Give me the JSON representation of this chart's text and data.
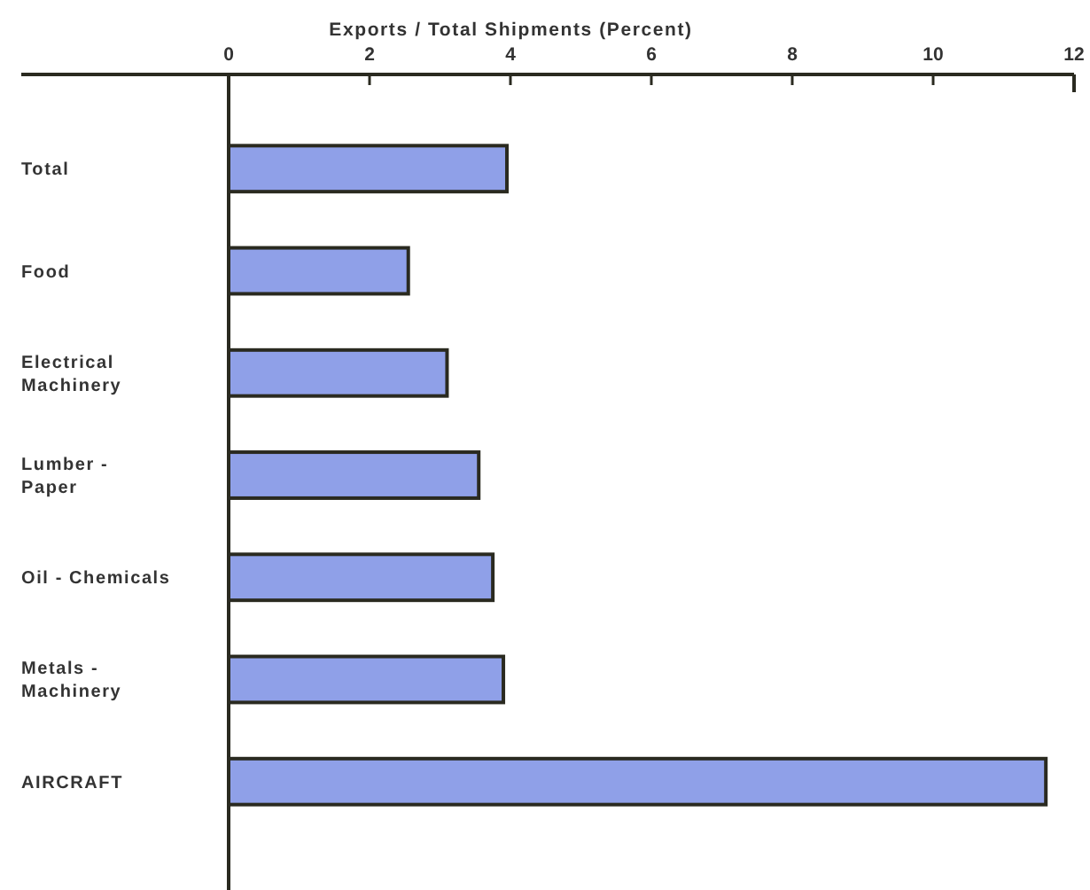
{
  "chart_data": {
    "type": "bar",
    "orientation": "horizontal",
    "xlabel": "Exports / Total Shipments (Percent)",
    "categories": [
      "Total",
      "Food",
      "Electrical\nMachinery",
      "Lumber -\nPaper",
      "Oil - Chemicals",
      "Metals -\nMachinery",
      "AIRCRAFT"
    ],
    "values": [
      3.95,
      2.55,
      3.1,
      3.55,
      3.75,
      3.9,
      11.6
    ],
    "color": "#8fa0e8",
    "xlim": [
      0,
      12
    ],
    "xticks": [
      0,
      2,
      4,
      6,
      8,
      10,
      12
    ]
  }
}
